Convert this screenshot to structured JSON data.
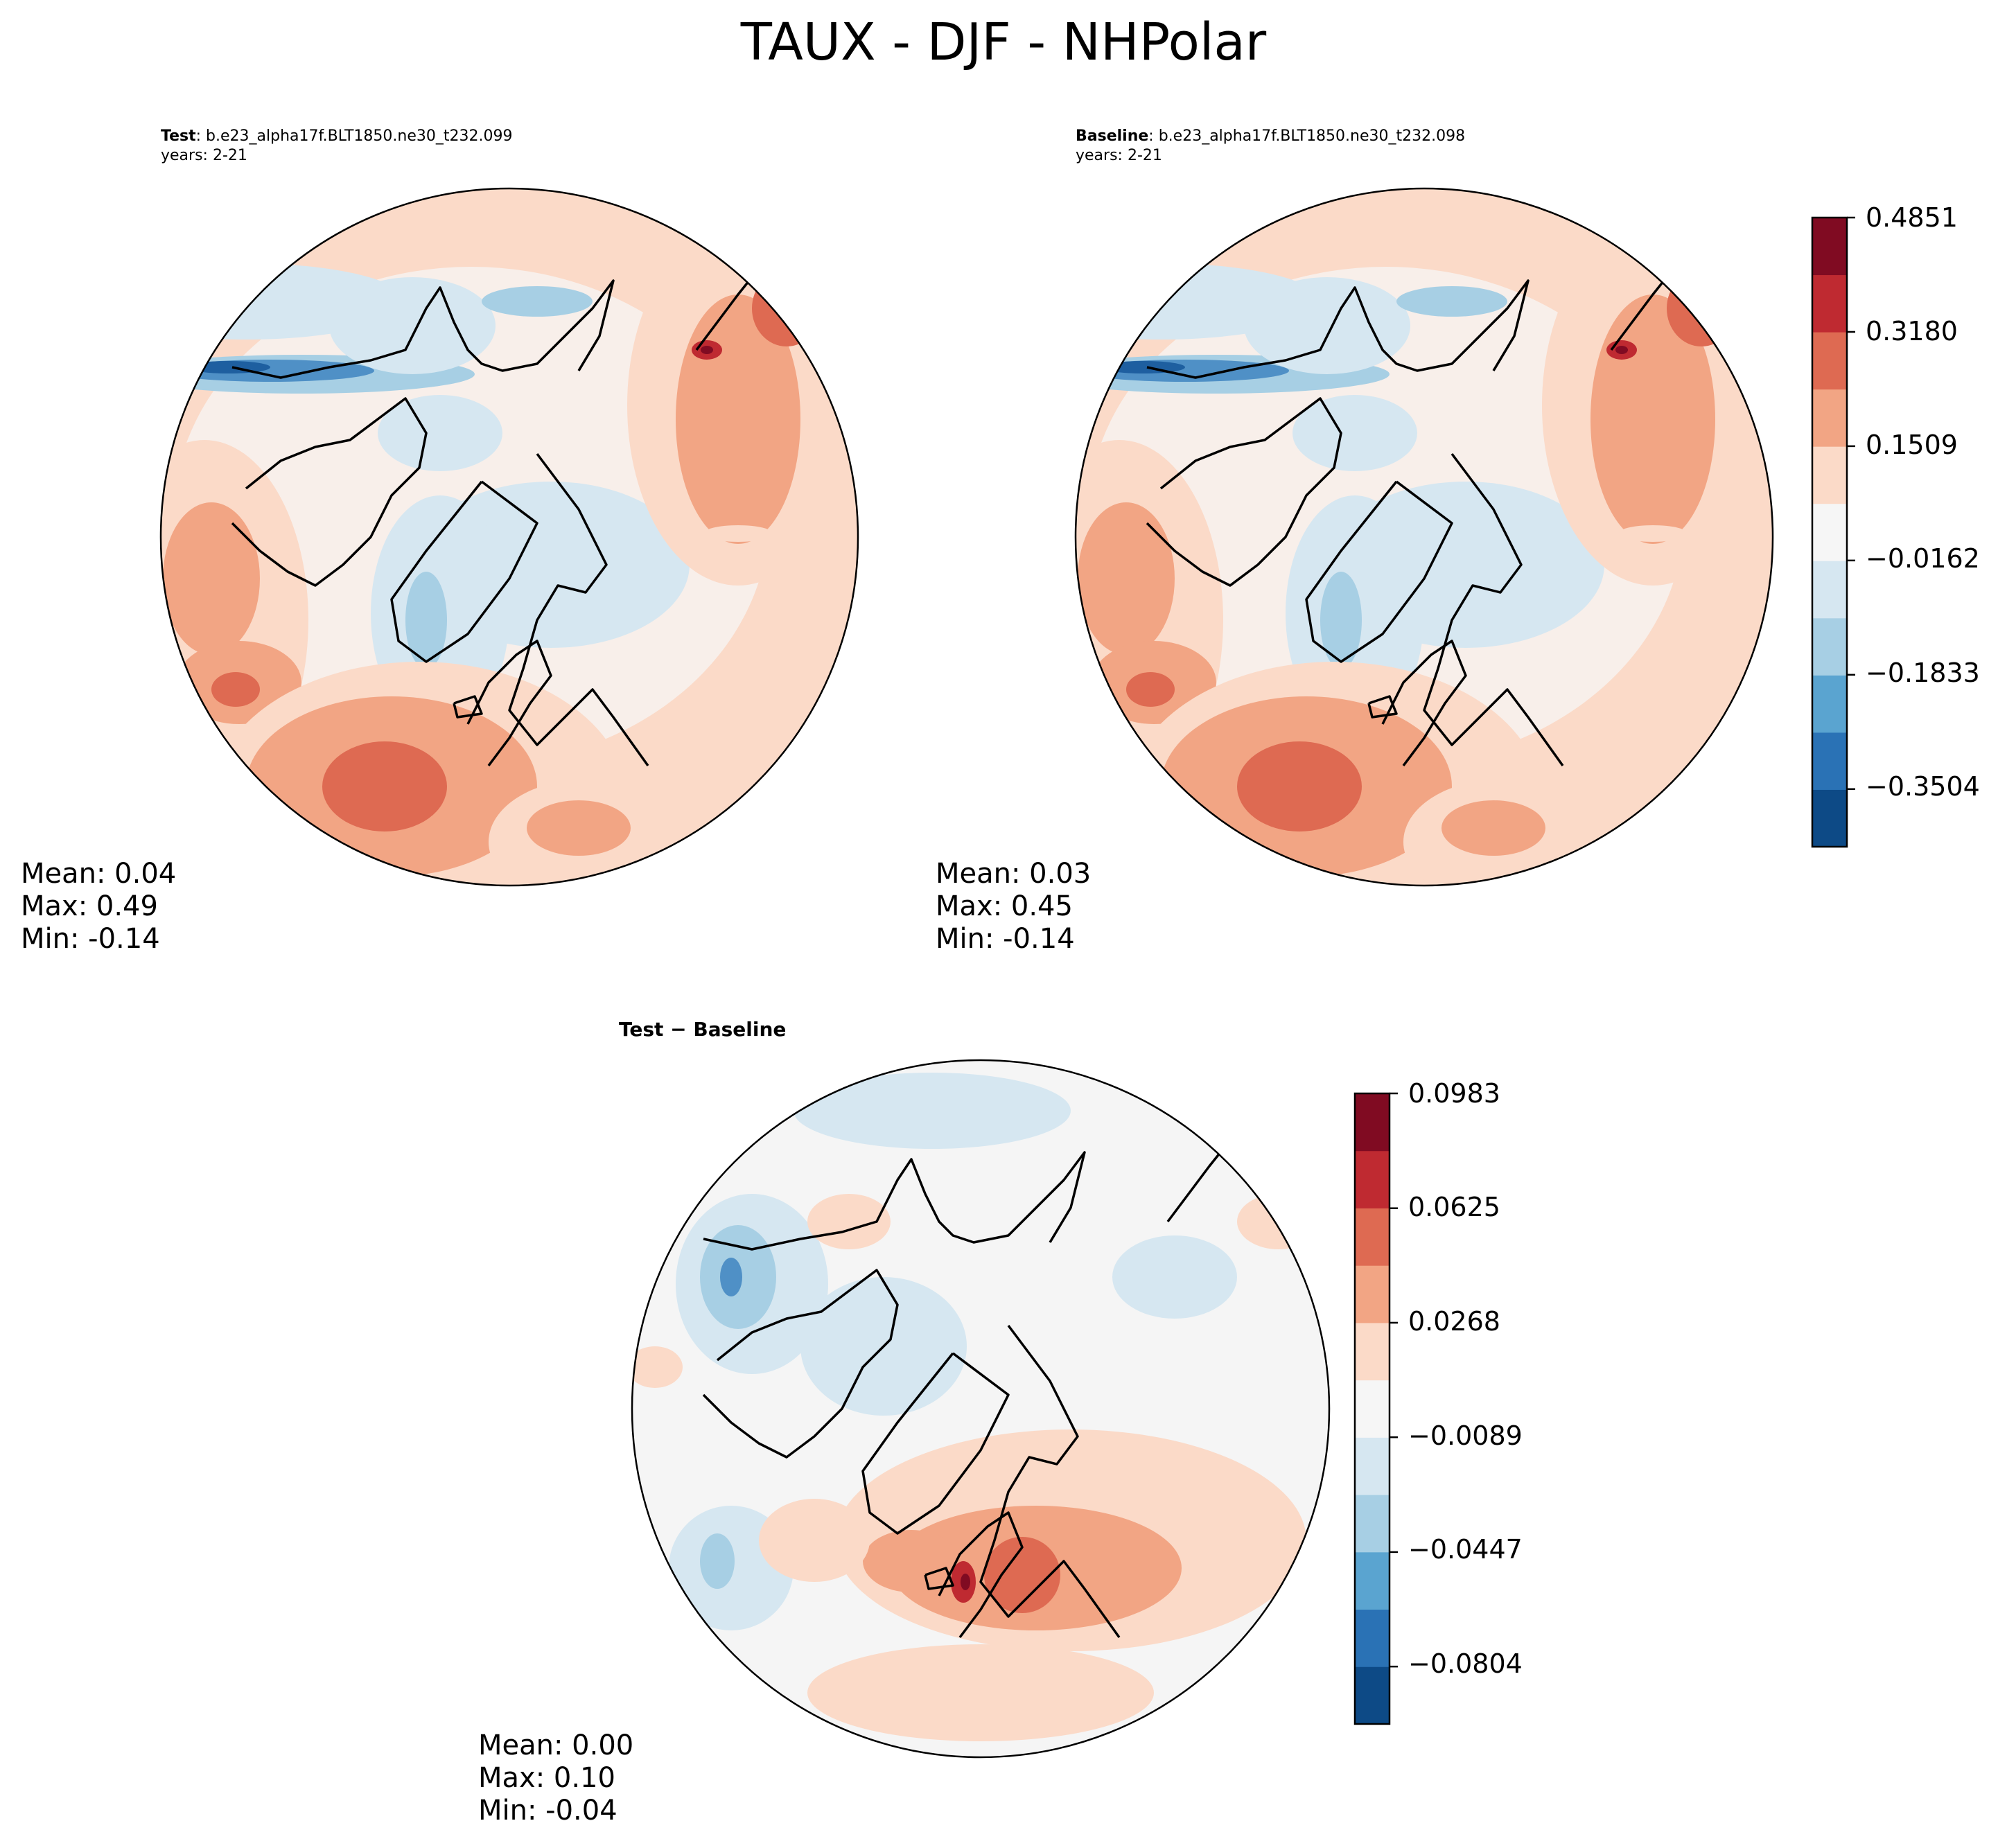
{
  "figure": {
    "title": "TAUX - DJF - NHPolar"
  },
  "panels": [
    {
      "id": "test",
      "label_bold": "Test",
      "label_sep": ": ",
      "case": "b.e23_alpha17f.BLT1850.ne30_t232.099",
      "years": "years: 2-21",
      "stats": {
        "mean": "Mean:  0.04",
        "max": "Max:  0.49",
        "min": "Min: -0.14"
      }
    },
    {
      "id": "baseline",
      "label_bold": "Baseline",
      "label_sep": ": ",
      "case": "b.e23_alpha17f.BLT1850.ne30_t232.098",
      "years": "years: 2-21",
      "stats": {
        "mean": "Mean:  0.03",
        "max": "Max:  0.45",
        "min": "Min: -0.14"
      }
    },
    {
      "id": "diff",
      "label_bold": "Test − Baseline",
      "stats": {
        "mean": "Mean:  0.00",
        "max": "Max:  0.10",
        "min": "Min: -0.04"
      }
    }
  ],
  "chart_data": [
    {
      "type": "heatmap",
      "projection": "north-polar-stereographic",
      "title": "Test: b.e23_alpha17f.BLT1850.ne30_t232.099",
      "colormap": "RdBu_r",
      "levels": 11,
      "range": [
        -0.4347,
        0.4851
      ],
      "colorbar_ticks": [
        0.4851,
        0.318,
        0.1509,
        -0.0162,
        -0.1833,
        -0.3504
      ],
      "colorbar_tick_labels": [
        "0.4851",
        "0.3180",
        "0.1509",
        "−0.0162",
        "−0.1833",
        "−0.3504"
      ],
      "mean": 0.04,
      "max": 0.49,
      "min": -0.14
    },
    {
      "type": "heatmap",
      "projection": "north-polar-stereographic",
      "title": "Baseline: b.e23_alpha17f.BLT1850.ne30_t232.098",
      "colormap": "RdBu_r",
      "levels": 11,
      "range": [
        -0.4347,
        0.4851
      ],
      "mean": 0.03,
      "max": 0.45,
      "min": -0.14
    },
    {
      "type": "heatmap",
      "projection": "north-polar-stereographic",
      "title": "Test − Baseline",
      "colormap": "RdBu_r",
      "levels": 11,
      "range": [
        -0.0983,
        0.0983
      ],
      "colorbar_ticks": [
        0.0983,
        0.0625,
        0.0268,
        -0.0089,
        -0.0447,
        -0.0804
      ],
      "colorbar_tick_labels": [
        "0.0983",
        "0.0625",
        "0.0268",
        "−0.0089",
        "−0.0447",
        "−0.0804"
      ],
      "mean": 0.0,
      "max": 0.1,
      "min": -0.04
    }
  ],
  "colors": {
    "scale_bottom_to_top": [
      "#0d4a86",
      "#2a72b5",
      "#5aa4d0",
      "#a7cfe4",
      "#d6e7f1",
      "#f6f6f6",
      "#fbdac8",
      "#f2a584",
      "#de6a52",
      "#bf2a31",
      "#800b22"
    ],
    "blue_strong": "#1e5fa0",
    "blue_mid": "#4f90c6",
    "blue_light": "#a7cfe4",
    "blue_pale": "#d6e7f1",
    "neutral_main": "#f8efea",
    "neutral_diff": "#f5f5f5",
    "red_pale": "#fbdac8",
    "red_light": "#f2a584",
    "red_mid": "#de6a52",
    "red_strong": "#bf2a31",
    "red_dark": "#800b22"
  }
}
